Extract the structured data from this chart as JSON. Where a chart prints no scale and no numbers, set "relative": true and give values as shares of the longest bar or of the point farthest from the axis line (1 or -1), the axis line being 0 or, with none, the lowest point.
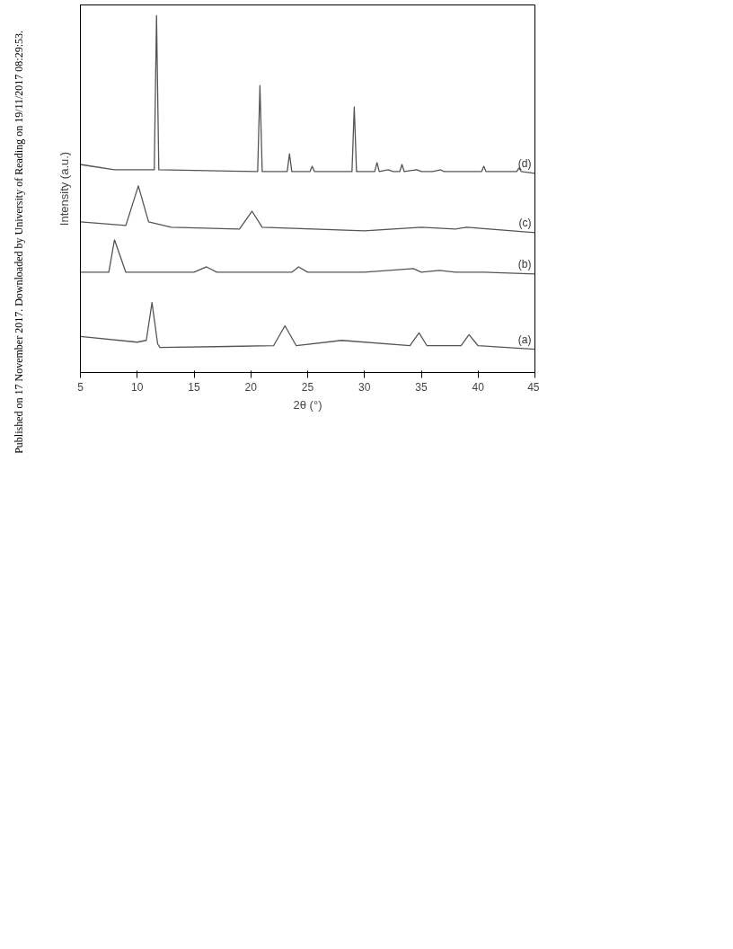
{
  "chart_data": {
    "type": "line",
    "xlabel": "2θ (°)",
    "ylabel": "Intensity (a.u.)",
    "relative": true,
    "xlim": [
      5,
      45
    ],
    "xticks": [
      5,
      10,
      15,
      20,
      25,
      30,
      35,
      40,
      45
    ],
    "grid": false,
    "tick_labels": "x",
    "annotations": [
      "Published on 17 November 2017. Downloaded by University of Reading on 19/11/2017 08:29:53."
    ],
    "series": [
      {
        "name": "(a)",
        "color": "#555555",
        "x": [
          5,
          10,
          10.8,
          11.3,
          11.8,
          12,
          22,
          23,
          24,
          28,
          34,
          34.8,
          35.5,
          38.5,
          39.2,
          40,
          45
        ],
        "values": [
          0.101,
          0.085,
          0.09,
          0.196,
          0.08,
          0.07,
          0.075,
          0.131,
          0.075,
          0.09,
          0.075,
          0.111,
          0.075,
          0.075,
          0.106,
          0.075,
          0.065
        ]
      },
      {
        "name": "(b)",
        "color": "#555555",
        "x": [
          5,
          7.5,
          8,
          9,
          15,
          16.1,
          17,
          23.6,
          24.2,
          25,
          30,
          34.3,
          35,
          36.6,
          38,
          40.5,
          45
        ],
        "values": [
          0.281,
          0.281,
          0.372,
          0.281,
          0.281,
          0.296,
          0.281,
          0.281,
          0.296,
          0.281,
          0.281,
          0.291,
          0.281,
          0.286,
          0.281,
          0.281,
          0.276
        ]
      },
      {
        "name": "(c)",
        "color": "#555555",
        "x": [
          5,
          9,
          10.1,
          11,
          13,
          19,
          20.1,
          21,
          30,
          35,
          38,
          39,
          45
        ],
        "values": [
          0.422,
          0.412,
          0.523,
          0.422,
          0.407,
          0.402,
          0.452,
          0.407,
          0.397,
          0.407,
          0.402,
          0.407,
          0.392
        ]
      },
      {
        "name": "(d)",
        "color": "#555555",
        "x": [
          5,
          6,
          8,
          11.5,
          11.7,
          11.9,
          20.6,
          20.8,
          21.0,
          23.2,
          23.4,
          23.6,
          25.2,
          25.4,
          25.6,
          28.9,
          29.1,
          29.3,
          30.9,
          31.1,
          31.3,
          32.1,
          32.5,
          33.1,
          33.3,
          33.5,
          34.6,
          35,
          36,
          36.7,
          37,
          40.3,
          40.5,
          40.7,
          43.4,
          43.6,
          43.8,
          45
        ],
        "values": [
          0.583,
          0.578,
          0.568,
          0.568,
          1,
          0.568,
          0.563,
          0.804,
          0.563,
          0.563,
          0.613,
          0.563,
          0.563,
          0.578,
          0.563,
          0.563,
          0.744,
          0.563,
          0.563,
          0.588,
          0.563,
          0.568,
          0.563,
          0.563,
          0.583,
          0.563,
          0.568,
          0.563,
          0.563,
          0.568,
          0.563,
          0.563,
          0.578,
          0.563,
          0.563,
          0.573,
          0.563,
          0.558
        ]
      }
    ]
  }
}
